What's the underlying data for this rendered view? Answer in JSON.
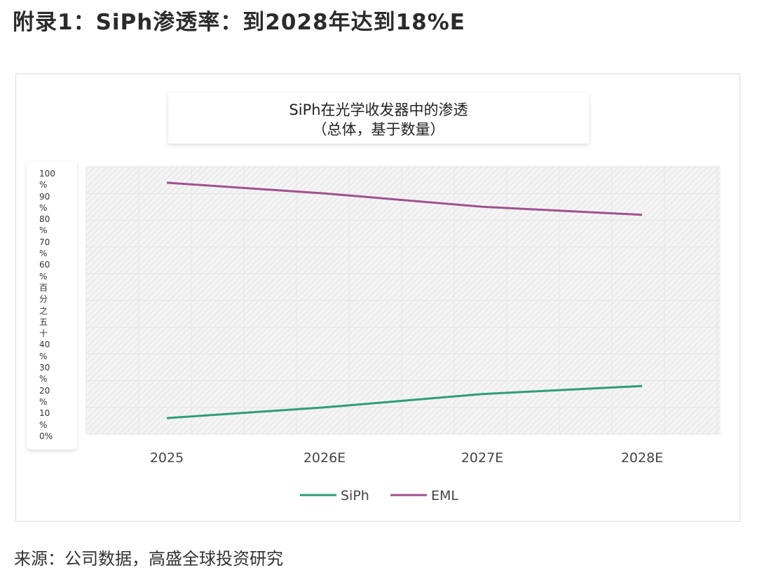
{
  "page": {
    "title": "附录1：SiPh渗透率：到2028年达到18%E",
    "source": "来源：公司数据，高盛全球投资研究"
  },
  "chart_data": {
    "type": "line",
    "title_line1": "SiPh在光学收发器中的渗透",
    "title_line2": "（总体，基于数量）",
    "categories": [
      "2025",
      "2026E",
      "2027E",
      "2028E"
    ],
    "series": [
      {
        "name": "SiPh",
        "color": "#2e9e74",
        "values": [
          6,
          10,
          15,
          18
        ]
      },
      {
        "name": "EML",
        "color": "#a0508f",
        "values": [
          94,
          90,
          85,
          82
        ]
      }
    ],
    "ylim": [
      0,
      100
    ],
    "ytick_labels": [
      "100",
      "%",
      "90",
      "%",
      "80",
      "%",
      "70",
      "%",
      "60",
      "%",
      "百",
      "分",
      "之",
      "五",
      "十",
      "40",
      "%",
      "30",
      "%",
      "20",
      "%",
      "10",
      "%",
      "0%"
    ],
    "legend": "bottom-center"
  }
}
